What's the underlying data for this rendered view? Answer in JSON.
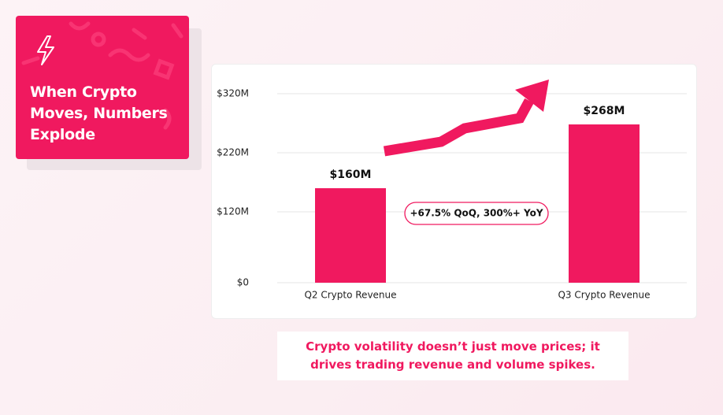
{
  "title_card": {
    "title_lines": [
      "When Crypto",
      "Moves, Numbers",
      "Explode"
    ]
  },
  "chart_data": {
    "type": "bar",
    "categories": [
      "Q2 Crypto Revenue",
      "Q3 Crypto Revenue"
    ],
    "values": [
      160,
      268
    ],
    "value_labels": [
      "$160M",
      "$268M"
    ],
    "color": "#f0195f",
    "ylim": [
      0,
      320
    ],
    "yticks": [
      {
        "value": 0,
        "label": "$0"
      },
      {
        "value": 120,
        "label": "$120M"
      },
      {
        "value": 220,
        "label": "$220M"
      },
      {
        "value": 320,
        "label": "$320M"
      }
    ],
    "grid": true,
    "annotation": "+67.5% QoQ, 300%+ YoY"
  },
  "caption": "Crypto volatility doesn’t just move prices; it drives trading revenue and volume spikes."
}
